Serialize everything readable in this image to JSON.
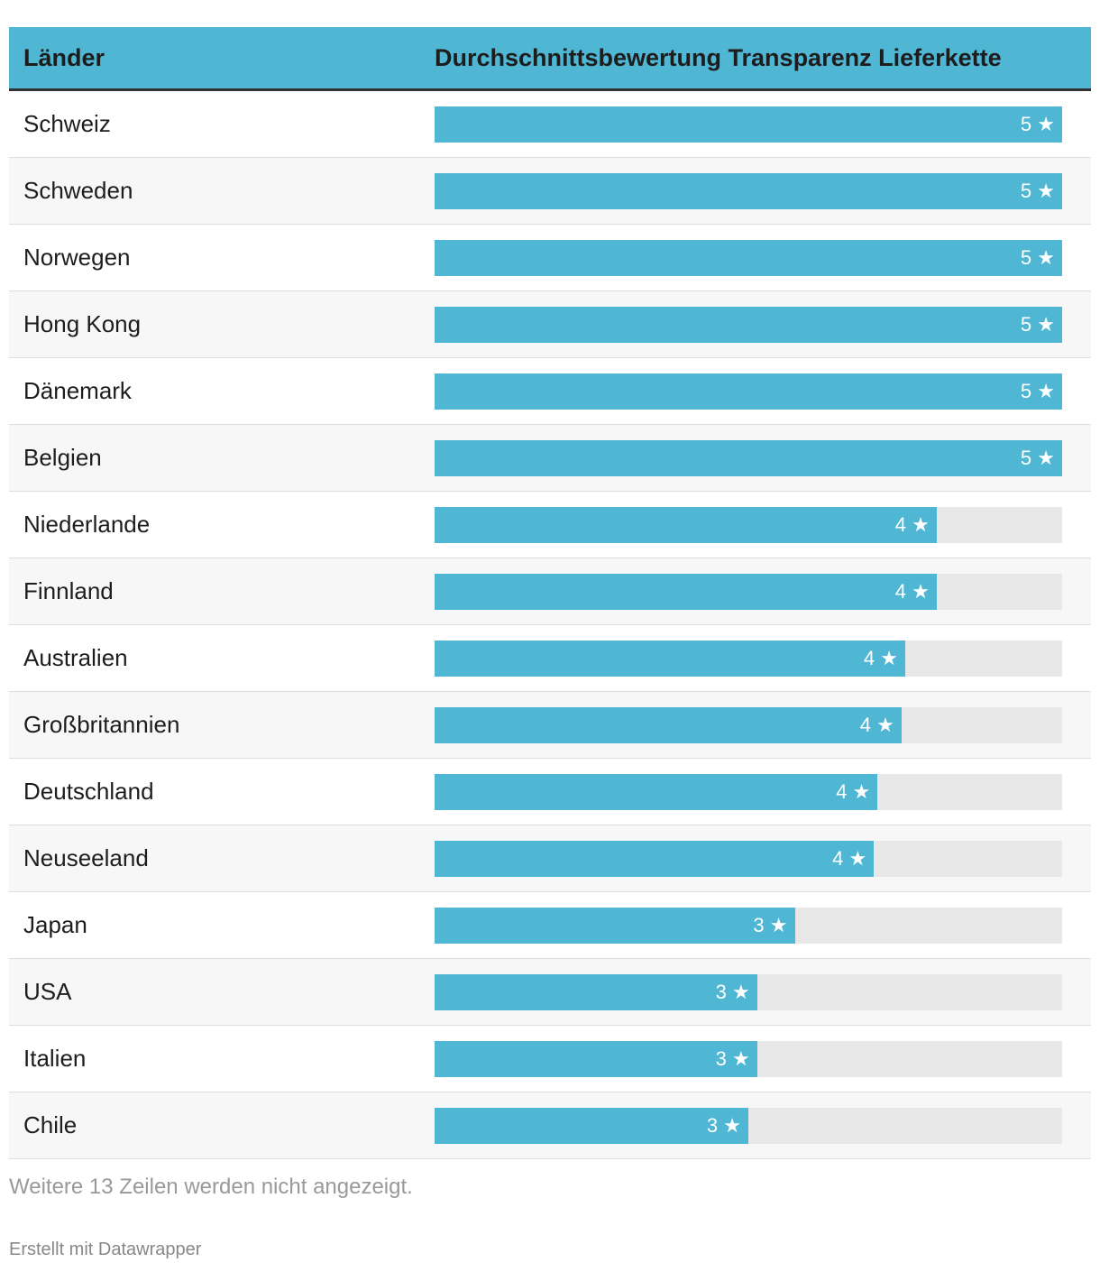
{
  "table": {
    "headers": [
      "Länder",
      "Durchschnittsbewertung Transparenz Lieferkette"
    ],
    "xlim": [
      0,
      5
    ],
    "bar_color": "#4fb6d4",
    "track_color": "#e8e8e8",
    "rows": [
      {
        "label": "Schweiz",
        "value": 5,
        "value_label": "5 ★"
      },
      {
        "label": "Schweden",
        "value": 5,
        "value_label": "5 ★"
      },
      {
        "label": "Norwegen",
        "value": 5,
        "value_label": "5 ★"
      },
      {
        "label": "Hong Kong",
        "value": 5,
        "value_label": "5 ★"
      },
      {
        "label": "Dänemark",
        "value": 5,
        "value_label": "5 ★"
      },
      {
        "label": "Belgien",
        "value": 5,
        "value_label": "5 ★"
      },
      {
        "label": "Niederlande",
        "value": 4,
        "value_label": "4 ★"
      },
      {
        "label": "Finnland",
        "value": 4,
        "value_label": "4 ★"
      },
      {
        "label": "Australien",
        "value": 3.75,
        "value_label": "4 ★"
      },
      {
        "label": "Großbritannien",
        "value": 3.72,
        "value_label": "4 ★"
      },
      {
        "label": "Deutschland",
        "value": 3.53,
        "value_label": "4 ★"
      },
      {
        "label": "Neuseeland",
        "value": 3.5,
        "value_label": "4 ★"
      },
      {
        "label": "Japan",
        "value": 2.87,
        "value_label": "3 ★"
      },
      {
        "label": "USA",
        "value": 2.57,
        "value_label": "3 ★"
      },
      {
        "label": "Italien",
        "value": 2.57,
        "value_label": "3 ★"
      },
      {
        "label": "Chile",
        "value": 2.5,
        "value_label": "3 ★"
      }
    ]
  },
  "note": "Weitere 13 Zeilen werden nicht angezeigt.",
  "footer": "Erstellt mit Datawrapper"
}
